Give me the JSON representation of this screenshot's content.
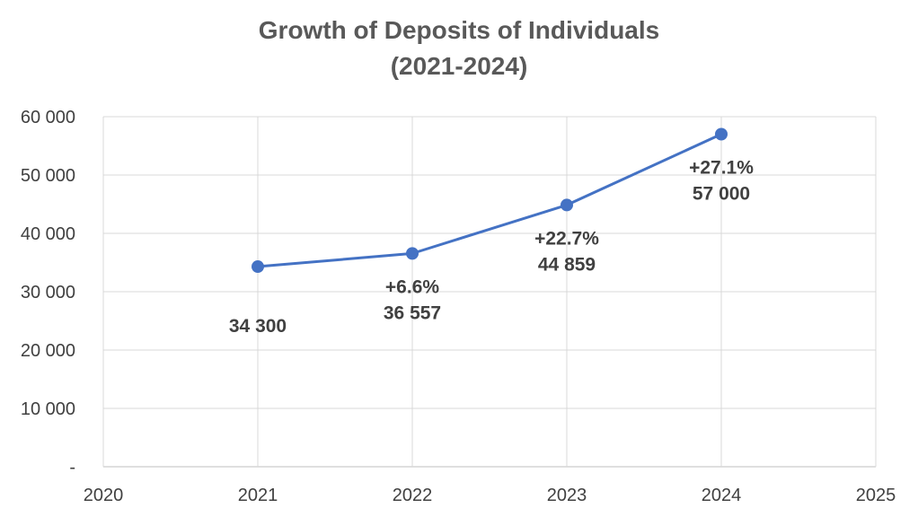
{
  "chart_data": {
    "type": "line",
    "title_line1": "Growth of Deposits of Individuals",
    "title_line2": "(2021-2024)",
    "xlabel": "",
    "ylabel": "",
    "xlim": [
      2020,
      2025
    ],
    "ylim": [
      0,
      60000
    ],
    "x_ticks": [
      "2020",
      "2021",
      "2022",
      "2023",
      "2024",
      "2025"
    ],
    "y_ticks": [
      "-",
      "10 000",
      "20 000",
      "30 000",
      "40 000",
      "50 000",
      "60 000"
    ],
    "grid": true,
    "legend": "none",
    "series_color": "#4472C4",
    "x": [
      2021,
      2022,
      2023,
      2024
    ],
    "values": [
      34300,
      36557,
      44859,
      57000
    ],
    "value_labels": [
      "34 300",
      "36 557",
      "44 859",
      "57 000"
    ],
    "growth_labels": [
      "",
      "+6.6%",
      "+22.7%",
      "+27.1%"
    ]
  }
}
